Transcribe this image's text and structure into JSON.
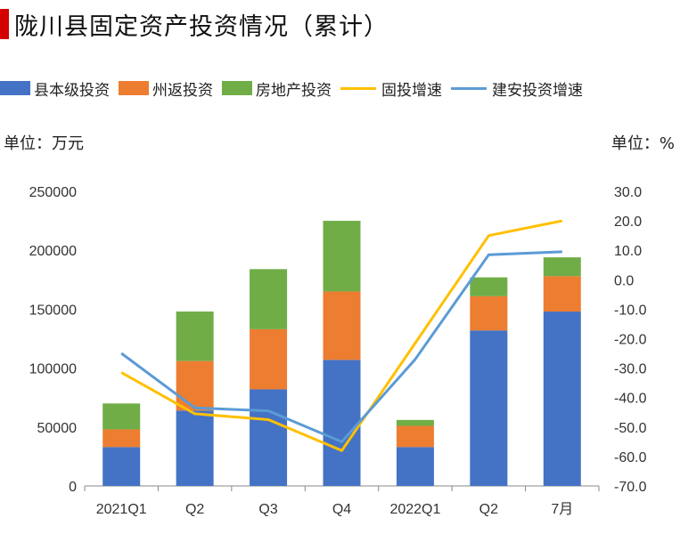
{
  "header": {
    "title": "陇川县固定资产投资情况（累计）"
  },
  "units": {
    "left": "单位：万元",
    "right": "单位：%"
  },
  "colors": {
    "title_accent": "#d40000",
    "bar_county": "#4472c4",
    "bar_state": "#ed7d31",
    "bar_realestate": "#70ad47",
    "line_fixed": "#ffc000",
    "line_construction": "#5b9bd5"
  },
  "chart_data": {
    "type": "bar",
    "categories": [
      "2021Q1",
      "Q2",
      "Q3",
      "Q4",
      "2022Q1",
      "Q2",
      "7月"
    ],
    "series": [
      {
        "name": "县本级投资",
        "kind": "bar",
        "axis": "left",
        "color": "#4472c4",
        "values": [
          33000,
          64000,
          82000,
          107000,
          33000,
          132000,
          148000
        ]
      },
      {
        "name": "州返投资",
        "kind": "bar",
        "axis": "left",
        "color": "#ed7d31",
        "values": [
          15000,
          42000,
          51000,
          58000,
          18000,
          29000,
          30000
        ]
      },
      {
        "name": "房地产投资",
        "kind": "bar",
        "axis": "left",
        "color": "#70ad47",
        "values": [
          22000,
          42000,
          51000,
          60000,
          5000,
          16000,
          16000
        ]
      },
      {
        "name": "固投增速",
        "kind": "line",
        "axis": "right",
        "color": "#ffc000",
        "values": [
          -31.5,
          -45.5,
          -47.5,
          -58.0,
          -21.5,
          15.0,
          20.0
        ]
      },
      {
        "name": "建安投资增速",
        "kind": "line",
        "axis": "right",
        "color": "#5b9bd5",
        "values": [
          -25.0,
          -43.5,
          -44.5,
          -55.0,
          -27.0,
          8.5,
          9.5
        ]
      }
    ],
    "y_left": {
      "ylim": [
        0,
        250000
      ],
      "ticks": [
        "0",
        "50000",
        "100000",
        "150000",
        "200000",
        "250000"
      ]
    },
    "y_right": {
      "ylim": [
        -70,
        30
      ],
      "ticks": [
        "-70.0",
        "-60.0",
        "-50.0",
        "-40.0",
        "-30.0",
        "-20.0",
        "-10.0",
        "0.0",
        "10.0",
        "20.0",
        "30.0"
      ]
    },
    "stacked": true,
    "legend_position": "top",
    "grid": false
  }
}
